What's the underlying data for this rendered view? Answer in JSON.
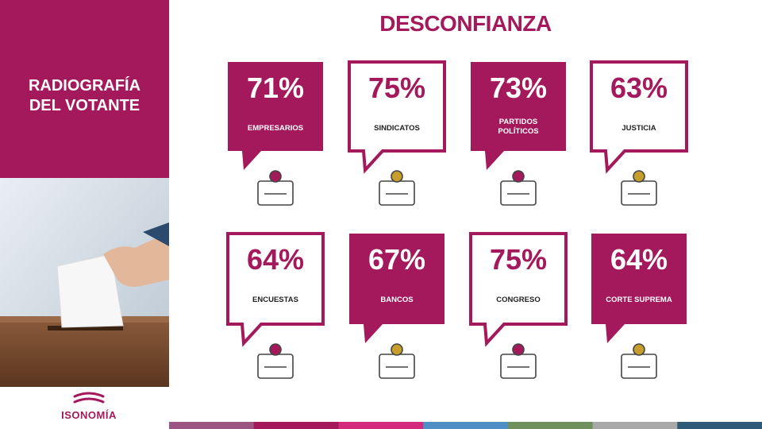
{
  "sidebar": {
    "title_lines": [
      "RADIOGRAFÍA",
      "DEL VOTANTE"
    ],
    "logo": "ISONOMÍA"
  },
  "title": "DESCONFIANZA",
  "cards": [
    {
      "value": "71%",
      "label": "EMPRESARIOS"
    },
    {
      "value": "75%",
      "label": "SINDICATOS"
    },
    {
      "value": "73%",
      "label": "PARTIDOS POLÍTICOS"
    },
    {
      "value": "63%",
      "label": "JUSTICIA"
    },
    {
      "value": "64%",
      "label": "ENCUESTAS"
    },
    {
      "value": "67%",
      "label": "BANCOS"
    },
    {
      "value": "75%",
      "label": "CONGRESO"
    },
    {
      "value": "64%",
      "label": "CORTE SUPREMA"
    }
  ]
}
